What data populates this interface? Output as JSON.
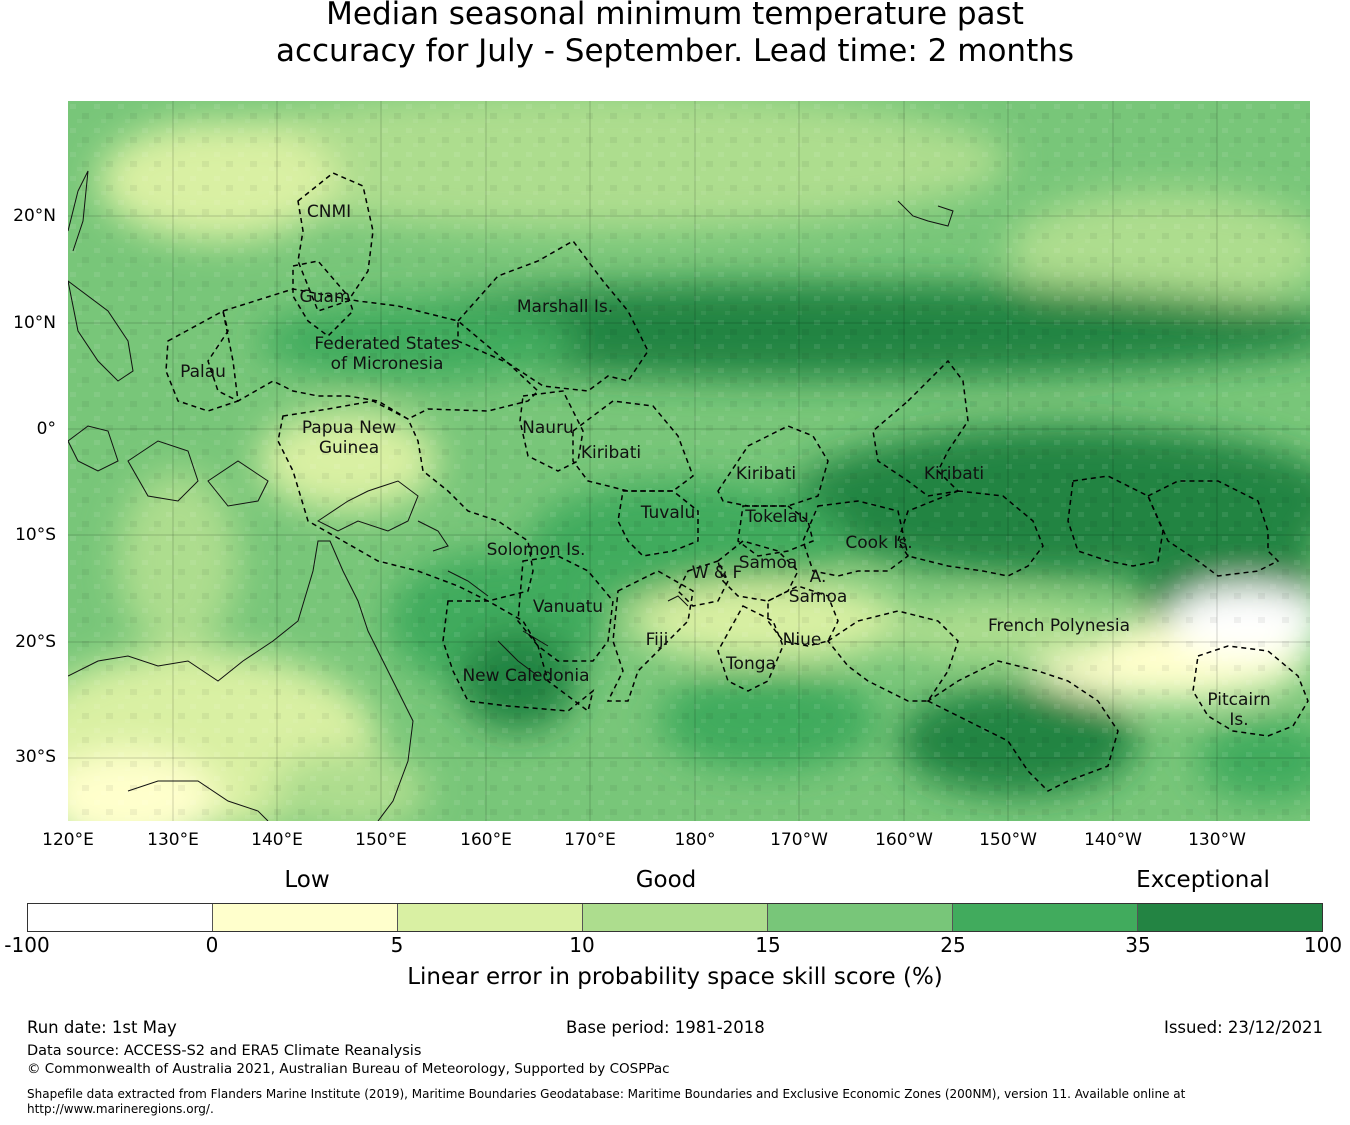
{
  "title_line1": "Median seasonal minimum temperature past",
  "title_line2": "accuracy for July - September. Lead time: 2 months",
  "lat_ticks": [
    "20°N",
    "10°N",
    "0°",
    "10°S",
    "20°S",
    "30°S"
  ],
  "lon_ticks": [
    "120°E",
    "130°E",
    "140°E",
    "150°E",
    "160°E",
    "170°E",
    "180°",
    "170°W",
    "160°W",
    "150°W",
    "140°W",
    "130°W"
  ],
  "regions": [
    "CNMI",
    "Guam",
    "Marshall Is.",
    "Federated States\nof Micronesia",
    "Palau",
    "Papua New\nGuinea",
    "Nauru",
    "Kiribati",
    "Kiribati",
    "Kiribati",
    "Tuvalu",
    "Tokelau",
    "Cook Is.",
    "Solomon Is.",
    "Samoa",
    "W & F",
    "A.\nSamoa",
    "Vanuatu",
    "Fiji",
    "Niue",
    "Tonga",
    "French Polynesia",
    "New Caledonia",
    "Pitcairn\nIs."
  ],
  "legend_categories": [
    "Low",
    "Good",
    "Exceptional"
  ],
  "colorbar": {
    "ticks": [
      "-100",
      "0",
      "5",
      "10",
      "15",
      "25",
      "35",
      "100"
    ],
    "colors": [
      "#ffffff",
      "#ffffcc",
      "#d9f0a3",
      "#addd8e",
      "#78c679",
      "#41ab5d",
      "#238443"
    ],
    "label": "Linear error in probability space skill score (%)"
  },
  "footer": {
    "run_date": "Run date: 1st May",
    "base_period": "Base period: 1981-2018",
    "issued": "Issued: 23/12/2021",
    "data_source": "Data source: ACCESS-S2 and ERA5 Climate Reanalysis",
    "copyright": "© Commonwealth of Australia 2021, Australian Bureau of Meteorology, Supported by COSPPac",
    "shapefile_line1": "Shapefile data extracted from Flanders Marine Institute (2019), Maritime Boundaries Geodatabase: Maritime Boundaries and Exclusive Economic Zones (200NM), version 11. Available online at",
    "shapefile_line2": "http://www.marineregions.org/."
  }
}
